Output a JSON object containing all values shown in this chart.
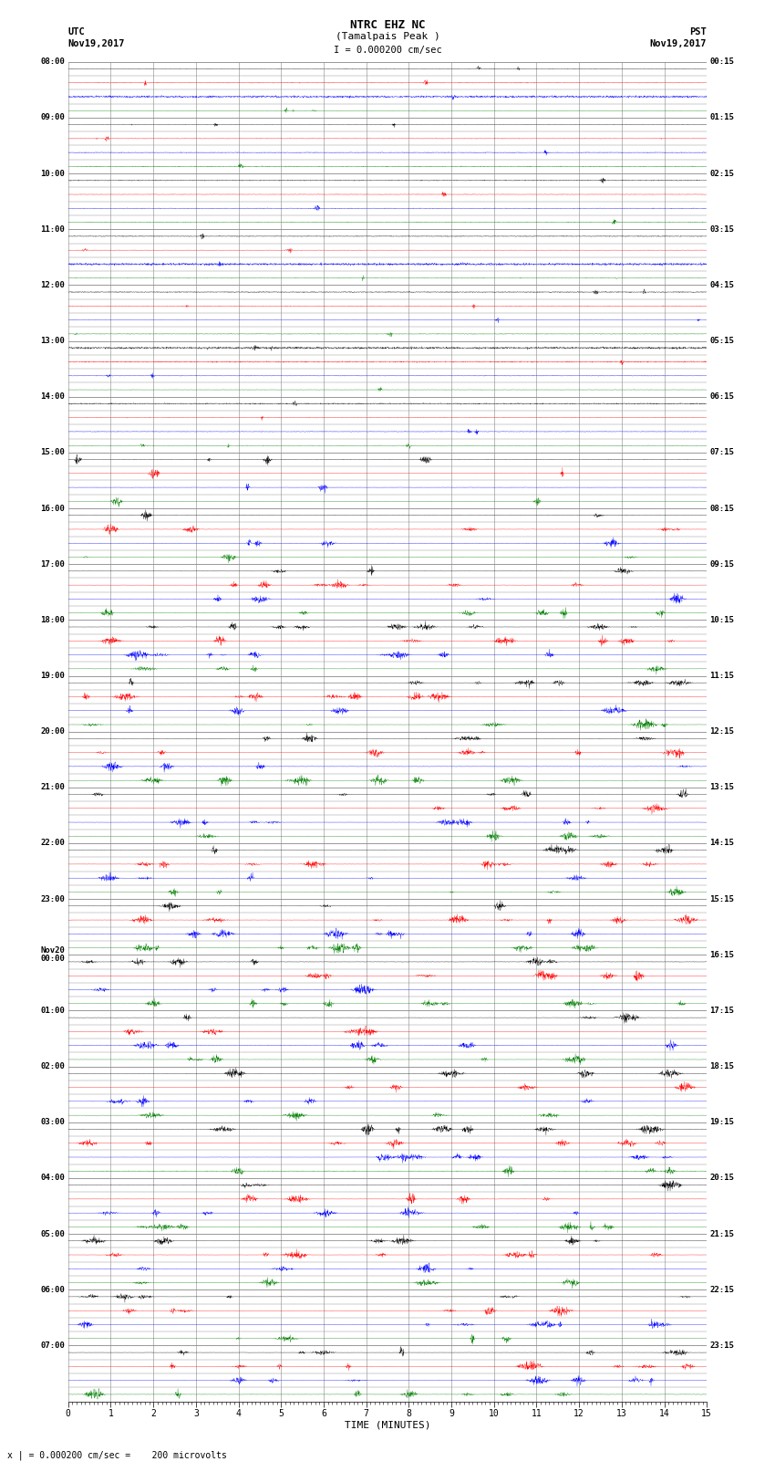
{
  "title_line1": "NTRC EHZ NC",
  "title_line2": "(Tamalpais Peak )",
  "scale_label": "I = 0.000200 cm/sec",
  "bottom_note": "x | = 0.000200 cm/sec =    200 microvolts",
  "xlabel": "TIME (MINUTES)",
  "num_hour_groups": 24,
  "traces_per_group": 4,
  "minutes_per_row": 15,
  "fig_width": 8.5,
  "fig_height": 16.13,
  "bg_color": "#ffffff",
  "grid_color": "#888888",
  "trace_colors": [
    "black",
    "red",
    "blue",
    "green"
  ],
  "left_times_utc": [
    "08:00",
    "09:00",
    "10:00",
    "11:00",
    "12:00",
    "13:00",
    "14:00",
    "15:00",
    "16:00",
    "17:00",
    "18:00",
    "19:00",
    "20:00",
    "21:00",
    "22:00",
    "23:00",
    "Nov20\n00:00",
    "01:00",
    "02:00",
    "03:00",
    "04:00",
    "05:00",
    "06:00",
    "07:00"
  ],
  "right_times_pst": [
    "00:15",
    "01:15",
    "02:15",
    "03:15",
    "04:15",
    "05:15",
    "06:15",
    "07:15",
    "08:15",
    "09:15",
    "10:15",
    "11:15",
    "12:15",
    "13:15",
    "14:15",
    "15:15",
    "16:15",
    "17:15",
    "18:15",
    "19:15",
    "20:15",
    "21:15",
    "22:15",
    "23:15"
  ],
  "seed": 12345,
  "samples": 3000
}
